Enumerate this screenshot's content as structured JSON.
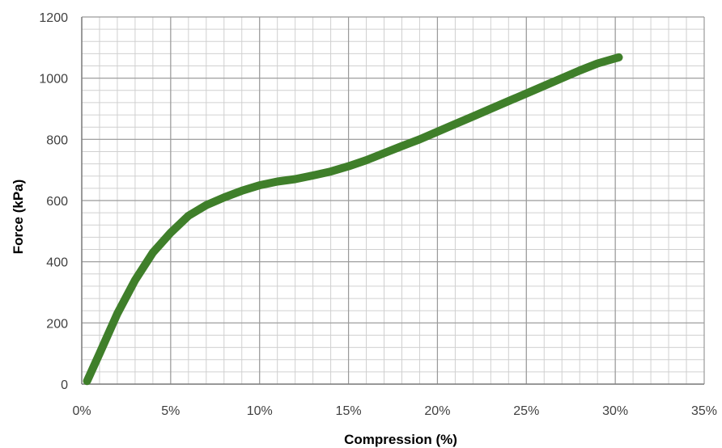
{
  "chart_data": {
    "type": "line",
    "title": "",
    "xlabel": "Compression (%)",
    "ylabel": "Force (kPa)",
    "xlim": [
      0,
      35
    ],
    "ylim": [
      0,
      1200
    ],
    "x_ticks": [
      "0%",
      "5%",
      "10%",
      "15%",
      "20%",
      "25%",
      "30%",
      "35%"
    ],
    "y_ticks": [
      "0",
      "200",
      "400",
      "600",
      "800",
      "1000",
      "1200"
    ],
    "grid": true,
    "legend": "none",
    "series": [
      {
        "color": "#3f7f2a",
        "x": [
          0.3,
          1,
          2,
          3,
          4,
          5,
          6,
          7,
          8,
          9,
          10,
          11,
          12,
          13,
          14,
          15,
          16,
          17,
          18,
          19,
          20,
          21,
          22,
          23,
          24,
          25,
          26,
          27,
          28,
          29,
          30.2
        ],
        "y": [
          10,
          100,
          230,
          340,
          430,
          495,
          550,
          585,
          610,
          632,
          650,
          662,
          670,
          682,
          695,
          712,
          732,
          755,
          778,
          800,
          825,
          850,
          875,
          900,
          925,
          950,
          975,
          1000,
          1025,
          1048,
          1068
        ]
      }
    ]
  }
}
